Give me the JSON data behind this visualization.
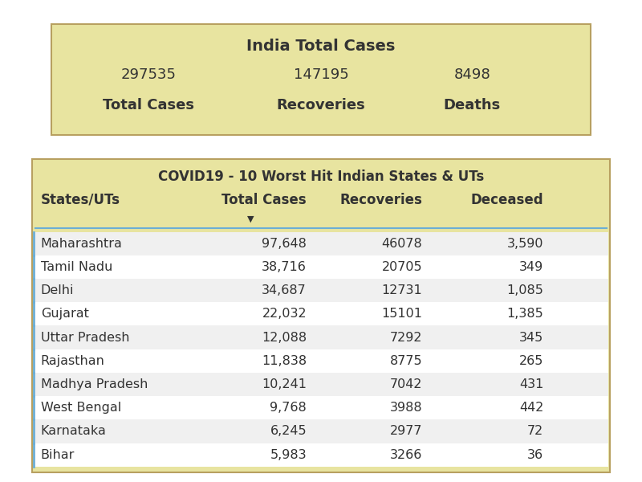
{
  "title_box": {
    "title": "India Total Cases",
    "total_cases_val": "297535",
    "recoveries_val": "147195",
    "deaths_val": "8498",
    "total_cases_lbl": "Total Cases",
    "recoveries_lbl": "Recoveries",
    "deaths_lbl": "Deaths",
    "bg_color": "#e8e4a0",
    "border_color": "#b8a060"
  },
  "table_box": {
    "title": "COVID19 - 10 Worst Hit Indian States & UTs",
    "bg_color": "#e8e4a0",
    "border_color": "#b8a060",
    "header_cols": [
      "States/UTs",
      "Total Cases",
      "Recoveries",
      "Deceased"
    ],
    "rows": [
      [
        "Maharashtra",
        "97,648",
        "46078",
        "3,590"
      ],
      [
        "Tamil Nadu",
        "38,716",
        "20705",
        "349"
      ],
      [
        "Delhi",
        "34,687",
        "12731",
        "1,085"
      ],
      [
        "Gujarat",
        "22,032",
        "15101",
        "1,385"
      ],
      [
        "Uttar Pradesh",
        "12,088",
        "7292",
        "345"
      ],
      [
        "Rajasthan",
        "11,838",
        "8775",
        "265"
      ],
      [
        "Madhya Pradesh",
        "10,241",
        "7042",
        "431"
      ],
      [
        "West Bengal",
        "9,768",
        "3988",
        "442"
      ],
      [
        "Karnataka",
        "6,245",
        "2977",
        "72"
      ],
      [
        "Bihar",
        "5,983",
        "3266",
        "36"
      ]
    ],
    "row_bg_even": "#f0f0f0",
    "row_bg_odd": "#ffffff",
    "sep_line_color": "#6baed6",
    "header_sep_color": "#6baed6"
  },
  "page_bg": "#ffffff",
  "font_color": "#333333",
  "title_font_size": 14,
  "value_font_size": 13,
  "label_font_size": 13,
  "table_title_font_size": 12,
  "table_header_font_size": 12,
  "table_data_font_size": 11.5
}
